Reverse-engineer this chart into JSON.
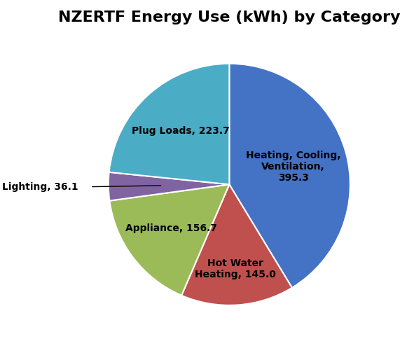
{
  "title": "NZERTF Energy Use (kWh) by Category",
  "labels": [
    "Heating, Cooling,\nVentilation,\n395.3",
    "Hot Water\nHeating, 145.0",
    "Appliance, 156.7",
    "Lighting, 36.1",
    "Plug Loads, 223.7"
  ],
  "values": [
    395.3,
    145.0,
    156.7,
    36.1,
    223.7
  ],
  "colors": [
    "#4472C4",
    "#C0504D",
    "#9BBB59",
    "#8064A2",
    "#4BACC6"
  ],
  "startangle": 90,
  "background_color": "#FFFFFF",
  "title_fontsize": 16,
  "label_fontsize": 10
}
